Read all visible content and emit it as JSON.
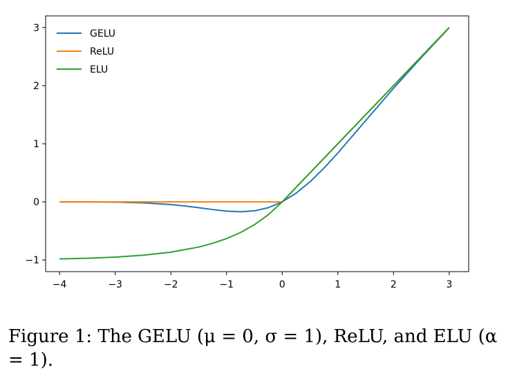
{
  "chart_data": {
    "type": "line",
    "title": "",
    "xlabel": "",
    "ylabel": "",
    "xlim": [
      -4.25,
      3.35
    ],
    "ylim": [
      -1.2,
      3.2
    ],
    "xticks": [
      -4,
      -3,
      -2,
      -1,
      0,
      1,
      2,
      3
    ],
    "yticks": [
      -1,
      0,
      1,
      2,
      3
    ],
    "xtick_labels": [
      "−4",
      "−3",
      "−2",
      "−1",
      "0",
      "1",
      "2",
      "3"
    ],
    "ytick_labels": [
      "−1",
      "0",
      "1",
      "2",
      "3"
    ],
    "grid": false,
    "legend_position": "top-left",
    "x_range": [
      -4,
      3
    ],
    "series": [
      {
        "name": "GELU",
        "color": "#1f77b4",
        "x": [
          -4,
          -3.5,
          -3,
          -2.5,
          -2,
          -1.75,
          -1.5,
          -1.25,
          -1,
          -0.75,
          -0.5,
          -0.25,
          0,
          0.25,
          0.5,
          0.75,
          1,
          1.5,
          2,
          2.5,
          3
        ],
        "y": [
          0,
          0,
          -0.004,
          -0.016,
          -0.046,
          -0.07,
          -0.1,
          -0.132,
          -0.159,
          -0.17,
          -0.154,
          -0.1,
          0,
          0.15,
          0.346,
          0.58,
          0.841,
          1.4,
          1.954,
          2.484,
          2.996
        ]
      },
      {
        "name": "ReLU",
        "color": "#ff7f0e",
        "x": [
          -4,
          0,
          3
        ],
        "y": [
          0,
          0,
          3
        ]
      },
      {
        "name": "ELU",
        "color": "#2ca02c",
        "x": [
          -4,
          -3.5,
          -3,
          -2.5,
          -2,
          -1.5,
          -1.25,
          -1,
          -0.75,
          -0.5,
          -0.25,
          0,
          3
        ],
        "y": [
          -0.982,
          -0.97,
          -0.95,
          -0.918,
          -0.865,
          -0.777,
          -0.713,
          -0.632,
          -0.528,
          -0.393,
          -0.221,
          0,
          3
        ]
      }
    ]
  },
  "caption": {
    "text": "Figure 1: The GELU (μ = 0, σ = 1), ReLU, and ELU (α = 1)."
  }
}
